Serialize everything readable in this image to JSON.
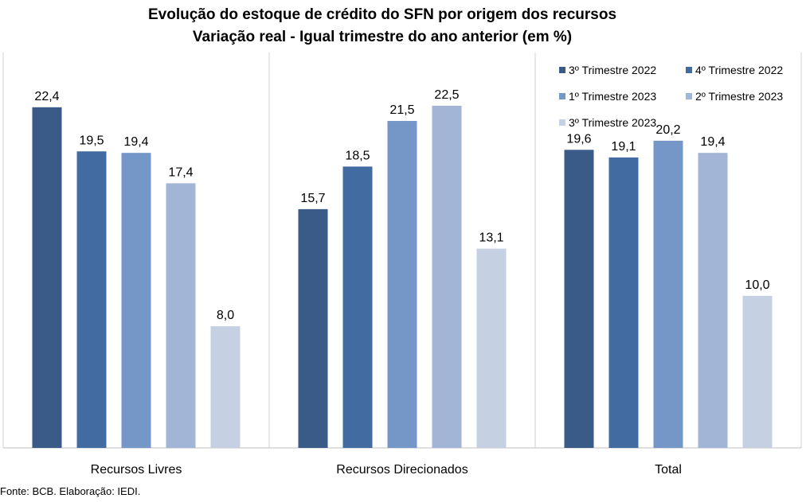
{
  "chart_data": {
    "type": "bar",
    "title": "Evolução do estoque de crédito do SFN por origem dos recursos",
    "subtitle": "Variação real - Igual trimestre do ano anterior (em %)",
    "categories": [
      "Recursos Livres",
      "Recursos Direcionados",
      "Total"
    ],
    "series": [
      {
        "name": "3º Trimestre 2022",
        "color": "#3a5a87",
        "values": [
          22.4,
          15.7,
          19.6
        ]
      },
      {
        "name": "4º Trimestre 2022",
        "color": "#426ca1",
        "values": [
          19.5,
          18.5,
          19.1
        ]
      },
      {
        "name": "1º Trimestre 2023",
        "color": "#7597c7",
        "values": [
          19.4,
          21.5,
          20.2
        ]
      },
      {
        "name": "2º Trimestre 2023",
        "color": "#a2b5d6",
        "values": [
          17.4,
          22.5,
          19.4
        ]
      },
      {
        "name": "3º Trimestre 2023",
        "color": "#c5d0e3",
        "values": [
          8.0,
          13.1,
          10.0
        ]
      }
    ],
    "ylim": [
      0,
      26
    ],
    "grid": false,
    "legend_position": "top-right"
  },
  "footer": {
    "source": "Fonte: BCB. Elaboração: IEDI."
  }
}
